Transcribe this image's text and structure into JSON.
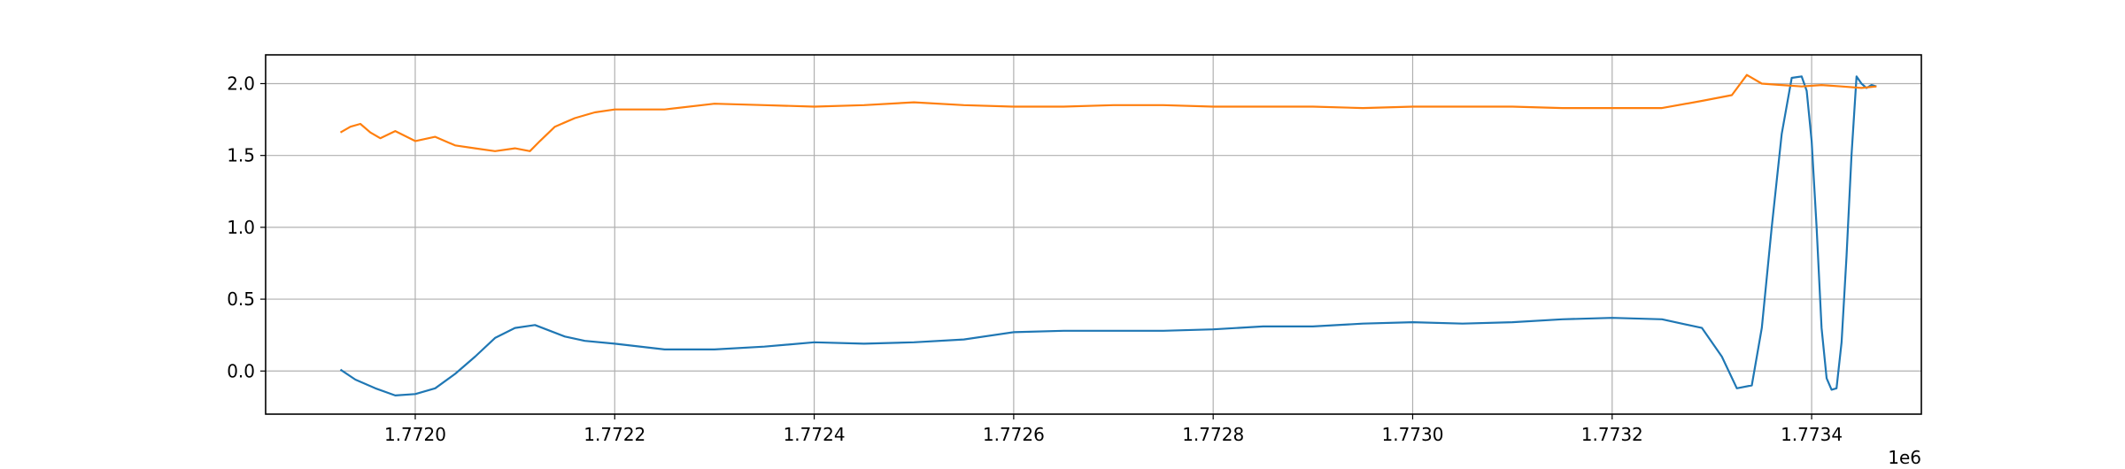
{
  "chart_data": {
    "type": "line",
    "title": "",
    "xlabel": "",
    "ylabel": "",
    "x_offset_label": "1e6",
    "xlim": [
      1771850,
      1773510
    ],
    "ylim": [
      -0.3,
      2.2
    ],
    "xticks": [
      1772000,
      1772200,
      1772400,
      1772600,
      1772800,
      1773000,
      1773200,
      1773400
    ],
    "xtick_labels": [
      "1.7720",
      "1.7722",
      "1.7724",
      "1.7726",
      "1.7728",
      "1.7730",
      "1.7732",
      "1.7734"
    ],
    "yticks": [
      0.0,
      0.5,
      1.0,
      1.5,
      2.0
    ],
    "ytick_labels": [
      "0.0",
      "0.5",
      "1.0",
      "1.5",
      "2.0"
    ],
    "grid": true,
    "legend": false,
    "series": [
      {
        "color": "#1f77b4",
        "x": [
          1771925,
          1771940,
          1771960,
          1771980,
          1772000,
          1772020,
          1772040,
          1772060,
          1772080,
          1772100,
          1772120,
          1772135,
          1772150,
          1772170,
          1772200,
          1772250,
          1772300,
          1772350,
          1772400,
          1772450,
          1772500,
          1772550,
          1772600,
          1772650,
          1772700,
          1772750,
          1772800,
          1772850,
          1772900,
          1772950,
          1773000,
          1773050,
          1773100,
          1773150,
          1773200,
          1773250,
          1773290,
          1773310,
          1773325,
          1773340,
          1773350,
          1773360,
          1773370,
          1773380,
          1773390,
          1773395,
          1773400,
          1773405,
          1773410,
          1773415,
          1773420,
          1773425,
          1773430,
          1773435,
          1773440,
          1773445,
          1773450,
          1773455,
          1773460,
          1773465
        ],
        "y": [
          0.01,
          -0.06,
          -0.12,
          -0.17,
          -0.16,
          -0.12,
          -0.02,
          0.1,
          0.23,
          0.3,
          0.32,
          0.28,
          0.24,
          0.21,
          0.19,
          0.15,
          0.15,
          0.17,
          0.2,
          0.19,
          0.2,
          0.22,
          0.27,
          0.28,
          0.28,
          0.28,
          0.29,
          0.31,
          0.31,
          0.33,
          0.34,
          0.33,
          0.34,
          0.36,
          0.37,
          0.36,
          0.3,
          0.1,
          -0.12,
          -0.1,
          0.3,
          1.0,
          1.65,
          2.04,
          2.05,
          1.95,
          1.6,
          1.0,
          0.3,
          -0.05,
          -0.13,
          -0.12,
          0.2,
          0.8,
          1.5,
          2.05,
          2.0,
          1.97,
          1.99,
          1.98
        ]
      },
      {
        "color": "#ff7f0e",
        "x": [
          1771925,
          1771935,
          1771945,
          1771955,
          1771965,
          1771980,
          1772000,
          1772020,
          1772040,
          1772060,
          1772080,
          1772100,
          1772115,
          1772125,
          1772140,
          1772160,
          1772180,
          1772200,
          1772250,
          1772300,
          1772350,
          1772400,
          1772450,
          1772500,
          1772550,
          1772600,
          1772650,
          1772700,
          1772750,
          1772800,
          1772850,
          1772900,
          1772950,
          1773000,
          1773050,
          1773100,
          1773150,
          1773200,
          1773250,
          1773290,
          1773320,
          1773335,
          1773350,
          1773370,
          1773390,
          1773410,
          1773430,
          1773450,
          1773465
        ],
        "y": [
          1.66,
          1.7,
          1.72,
          1.66,
          1.62,
          1.67,
          1.6,
          1.63,
          1.57,
          1.55,
          1.53,
          1.55,
          1.53,
          1.6,
          1.7,
          1.76,
          1.8,
          1.82,
          1.82,
          1.86,
          1.85,
          1.84,
          1.85,
          1.87,
          1.85,
          1.84,
          1.84,
          1.85,
          1.85,
          1.84,
          1.84,
          1.84,
          1.83,
          1.84,
          1.84,
          1.84,
          1.83,
          1.83,
          1.83,
          1.88,
          1.92,
          2.06,
          2.0,
          1.99,
          1.98,
          1.99,
          1.98,
          1.97,
          1.98
        ]
      }
    ]
  }
}
